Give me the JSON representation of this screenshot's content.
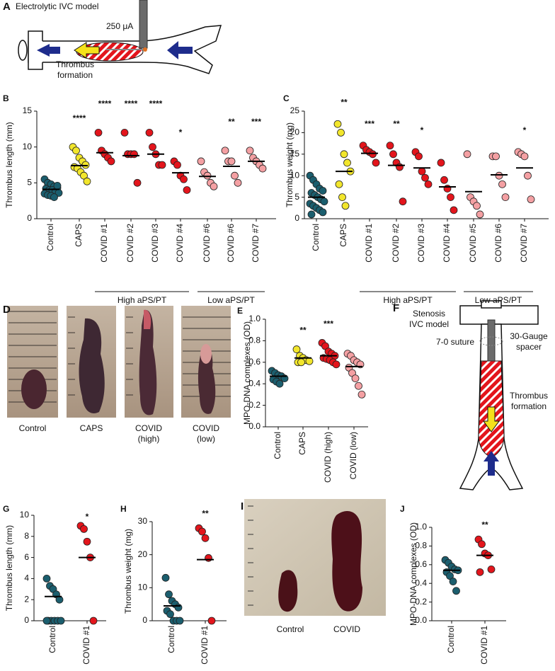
{
  "panel_a": {
    "label": "A",
    "title": "Electrolytic IVC model",
    "current": "250 μA",
    "caption": "Thrombus formation"
  },
  "panel_d": {
    "label": "D",
    "captions": [
      "Control",
      "CAPS",
      "COVID (high)",
      "COVID (low)"
    ]
  },
  "panel_f": {
    "label": "F",
    "title": "Stenosis IVC model",
    "suture": "7-0 suture",
    "spacer": "30-Gauge spacer",
    "caption": "Thrombus formation"
  },
  "panel_i": {
    "label": "I",
    "captions": [
      "Control",
      "COVID"
    ]
  },
  "chart_data": [
    {
      "type": "strip",
      "panel": "B",
      "y_label": "Thrombus length  (mm)",
      "categories": [
        "Control",
        "CAPS",
        "COVID #1",
        "COVID #2",
        "COVID #3",
        "COVID #4",
        "COVID #6",
        "COVID #6",
        "COVID #7"
      ],
      "colors": [
        "#1b5e6e",
        "#f2e62c",
        "#e3151c",
        "#e3151c",
        "#e3151c",
        "#e3151c",
        "#f4a0a3",
        "#f4a0a3",
        "#f4a0a3"
      ],
      "points": [
        [
          5.5,
          5,
          4.8,
          4.5,
          4.3,
          4.2,
          4,
          4,
          3.8,
          3.6,
          3.5,
          3.3,
          3.2,
          3,
          4.6
        ],
        [
          10,
          9.5,
          8.5,
          8,
          7.5,
          7.2,
          7,
          6.5,
          6,
          5.2
        ],
        [
          12,
          9.5,
          9,
          8.5,
          8
        ],
        [
          12,
          9,
          9,
          9,
          5
        ],
        [
          12,
          10,
          9,
          7.5,
          7.5
        ],
        [
          8,
          7.5,
          6,
          5.5,
          4
        ],
        [
          8,
          6.5,
          6,
          5,
          4.5
        ],
        [
          9.5,
          8,
          8,
          6,
          5
        ],
        [
          9.5,
          8.5,
          8,
          7.5,
          7
        ]
      ],
      "means": [
        4.1,
        7.4,
        9.2,
        8.8,
        9.0,
        6.4,
        5.9,
        7.3,
        8.0
      ],
      "significance": [
        null,
        "****",
        "****",
        "****",
        "****",
        "*",
        null,
        "**",
        "***"
      ],
      "groups": [
        "High aPS/PT",
        "Low aPS/PT"
      ],
      "ylim": [
        0,
        15
      ],
      "yticks": [
        0,
        5,
        10,
        15
      ]
    },
    {
      "type": "strip",
      "panel": "C",
      "y_label": "Thrombus weight (mg)",
      "categories": [
        "Control",
        "CAPS",
        "COVID #1",
        "COVID #2",
        "COVID #3",
        "COVID #4",
        "COVID #5",
        "COVID #6",
        "COVID #7"
      ],
      "colors": [
        "#1b5e6e",
        "#f2e62c",
        "#e3151c",
        "#e3151c",
        "#e3151c",
        "#e3151c",
        "#f4a0a3",
        "#f4a0a3",
        "#f4a0a3"
      ],
      "points": [
        [
          10,
          9,
          8,
          7,
          6.5,
          6,
          5.5,
          5,
          4.5,
          4,
          3.5,
          3,
          2.5,
          2,
          1.5,
          1
        ],
        [
          22,
          20,
          15,
          13,
          11,
          8,
          5,
          3
        ],
        [
          17,
          16,
          15.5,
          15,
          13
        ],
        [
          17,
          15,
          13,
          12,
          4
        ],
        [
          15.5,
          14.5,
          11,
          9.5,
          8
        ],
        [
          13,
          9,
          7,
          5,
          2
        ],
        [
          15,
          5,
          4,
          3,
          1
        ],
        [
          14.5,
          14.5,
          10,
          8,
          5
        ],
        [
          15.5,
          15,
          14.5,
          10,
          4.5
        ]
      ],
      "means": [
        5,
        11,
        15.2,
        12.4,
        11.8,
        7.4,
        6.3,
        10.2,
        11.8
      ],
      "significance": [
        null,
        "**",
        "***",
        "**",
        "*",
        null,
        null,
        null,
        "*"
      ],
      "groups": [
        "High aPS/PT",
        "Low aPS/PT"
      ],
      "ylim": [
        0,
        25
      ],
      "yticks": [
        0,
        5,
        10,
        15,
        20,
        25
      ]
    },
    {
      "type": "strip",
      "panel": "E",
      "y_label": "MPO-DNA complexes (OD)",
      "categories": [
        "Control",
        "CAPS",
        "COVID (high)",
        "COVID (low)"
      ],
      "colors": [
        "#1b5e6e",
        "#f2e62c",
        "#e3151c",
        "#f4a0a3"
      ],
      "points": [
        [
          0.52,
          0.5,
          0.48,
          0.47,
          0.45,
          0.44,
          0.42,
          0.4
        ],
        [
          0.72,
          0.66,
          0.64,
          0.62,
          0.61,
          0.6,
          0.6
        ],
        [
          0.78,
          0.75,
          0.7,
          0.68,
          0.66,
          0.64,
          0.63,
          0.62,
          0.6,
          0.58
        ],
        [
          0.68,
          0.66,
          0.62,
          0.6,
          0.58,
          0.55,
          0.5,
          0.45,
          0.38,
          0.3
        ]
      ],
      "means": [
        0.47,
        0.64,
        0.66,
        0.56
      ],
      "significance": [
        null,
        "**",
        "***",
        null
      ],
      "ylim": [
        0,
        1
      ],
      "yticks": [
        {
          "value": 0,
          "label": "0.0"
        },
        0.2,
        0.4,
        0.6,
        0.8,
        {
          "value": 1,
          "label": "1.0"
        }
      ]
    },
    {
      "type": "strip",
      "panel": "G",
      "y_label": "Thrombus length  (mm)",
      "categories": [
        "Control",
        "COVID #1"
      ],
      "colors": [
        "#1b5e6e",
        "#e3151c"
      ],
      "points": [
        [
          4,
          3.3,
          3,
          2.5,
          2,
          0,
          0,
          0,
          0,
          0,
          0
        ],
        [
          9,
          8.7,
          7.5,
          6,
          0
        ]
      ],
      "means": [
        2.3,
        6
      ],
      "significance": [
        null,
        "*"
      ],
      "ylim": [
        0,
        10
      ],
      "yticks": [
        0,
        2,
        4,
        6,
        8,
        10
      ]
    },
    {
      "type": "strip",
      "panel": "H",
      "y_label": "Thrombus weight (mg)",
      "categories": [
        "Control",
        "COVID #1"
      ],
      "colors": [
        "#1b5e6e",
        "#e3151c"
      ],
      "points": [
        [
          13,
          8,
          6,
          5,
          4,
          3,
          2,
          0,
          0,
          0
        ],
        [
          28,
          27,
          25,
          19,
          0
        ]
      ],
      "means": [
        4.5,
        18.5
      ],
      "significance": [
        null,
        "**"
      ],
      "ylim": [
        0,
        30
      ],
      "yticks": [
        0,
        10,
        20,
        30
      ]
    },
    {
      "type": "strip",
      "panel": "J",
      "y_label": "MPO-DNA complexes (OD)",
      "categories": [
        "Control",
        "COVID #1"
      ],
      "colors": [
        "#1b5e6e",
        "#e3151c"
      ],
      "points": [
        [
          0.65,
          0.62,
          0.58,
          0.55,
          0.54,
          0.52,
          0.48,
          0.42,
          0.32
        ],
        [
          0.87,
          0.82,
          0.72,
          0.7,
          0.55,
          0.52
        ]
      ],
      "means": [
        0.54,
        0.7
      ],
      "significance": [
        null,
        "**"
      ],
      "ylim": [
        0,
        1
      ],
      "yticks": [
        {
          "value": 0,
          "label": "0.0"
        },
        0.2,
        0.4,
        0.6,
        0.8,
        {
          "value": 1,
          "label": "1.0"
        }
      ]
    }
  ]
}
